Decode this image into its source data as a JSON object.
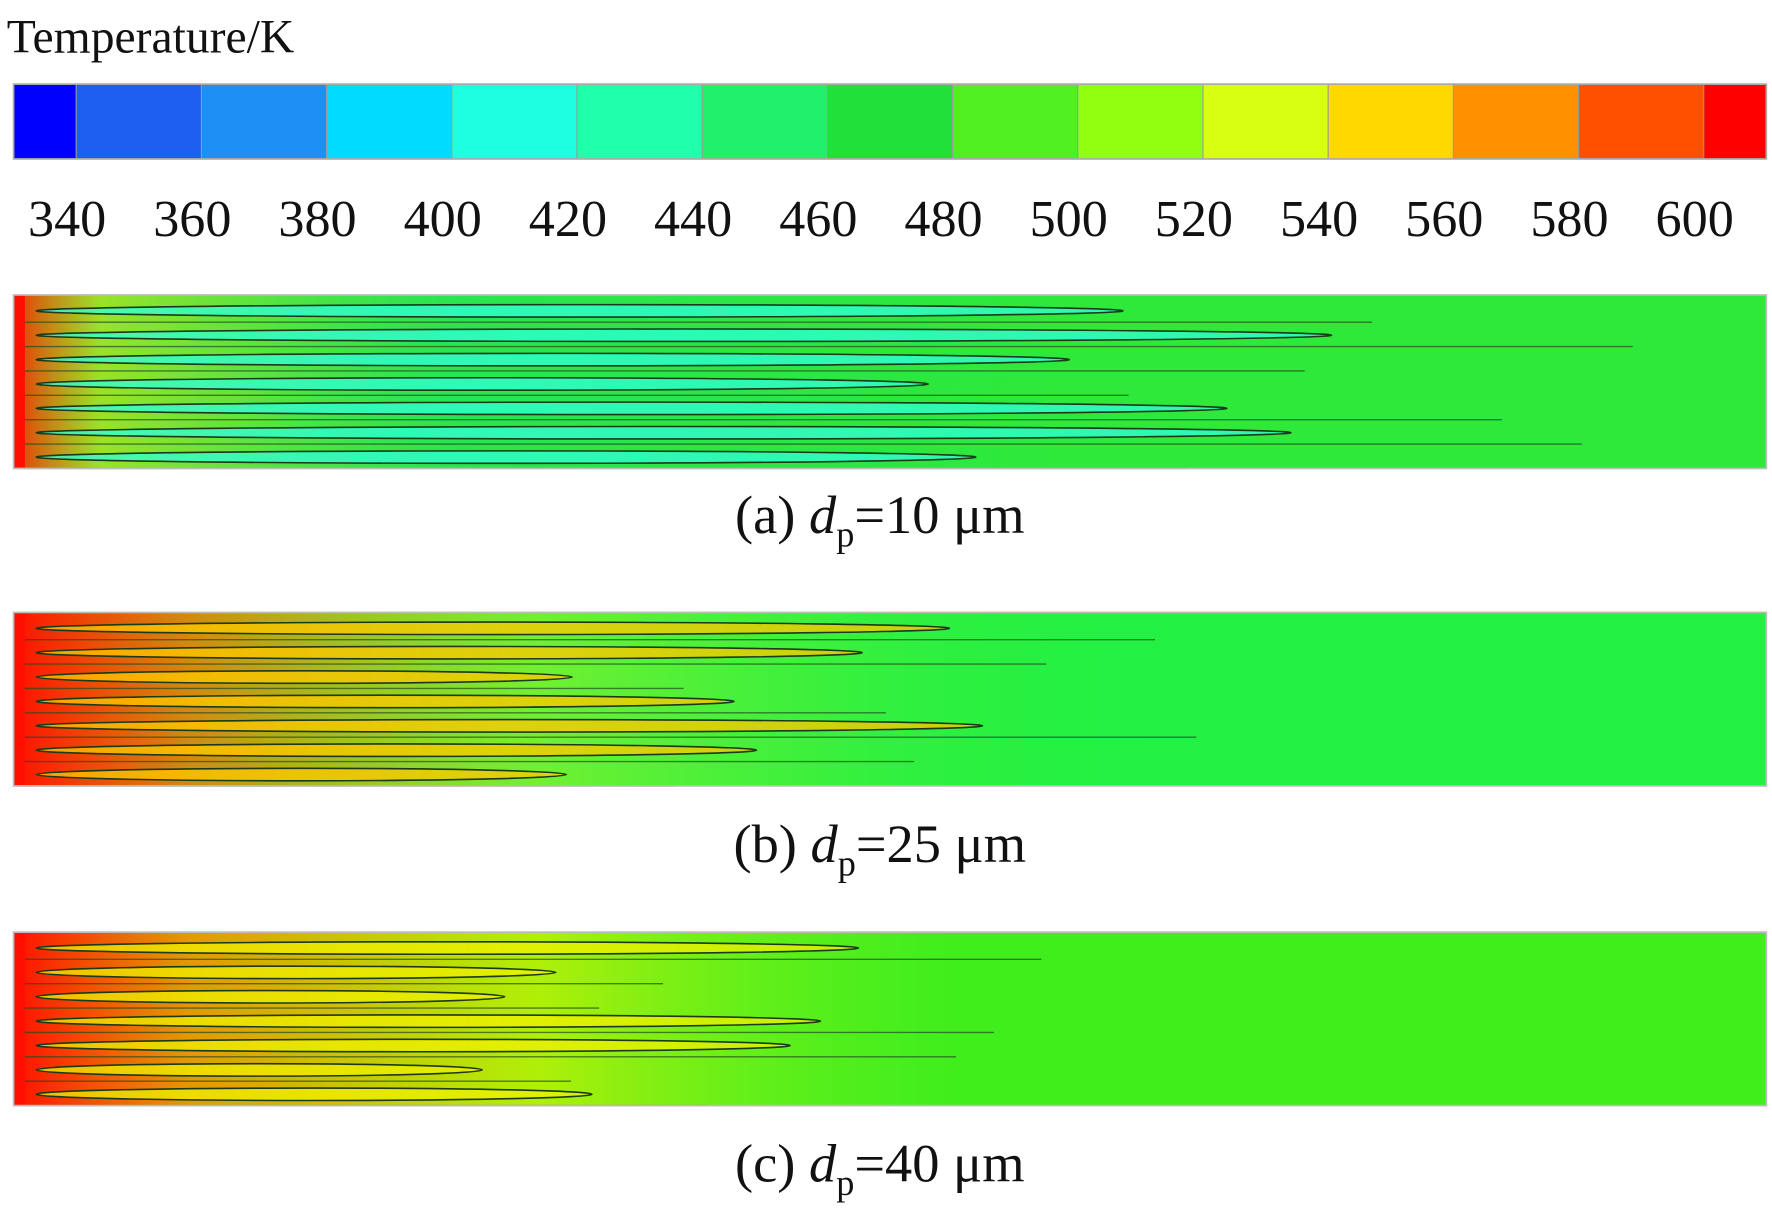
{
  "chart_data": {
    "type": "contour",
    "title": "Temperature/K",
    "colorbar": {
      "clim": [
        330,
        610
      ],
      "ticks": [
        340,
        360,
        380,
        400,
        420,
        440,
        460,
        480,
        500,
        520,
        540,
        560,
        580,
        600
      ],
      "colors": [
        "#0000ff",
        "#1e5ef0",
        "#1e90f5",
        "#00dcff",
        "#1effe0",
        "#20ffaa",
        "#20f06a",
        "#22e03a",
        "#50f020",
        "#90ff10",
        "#d8ff10",
        "#ffd800",
        "#ff9000",
        "#ff5000",
        "#ff0000"
      ]
    },
    "panels": [
      {
        "label": "(a) ",
        "variable": "d",
        "subscript": "p",
        "value_text": "=10 μm"
      },
      {
        "label": "(b) ",
        "variable": "d",
        "subscript": "p",
        "value_text": "=25 μm"
      },
      {
        "label": "(c) ",
        "variable": "d",
        "subscript": "p",
        "value_text": "=40 μm"
      }
    ]
  }
}
